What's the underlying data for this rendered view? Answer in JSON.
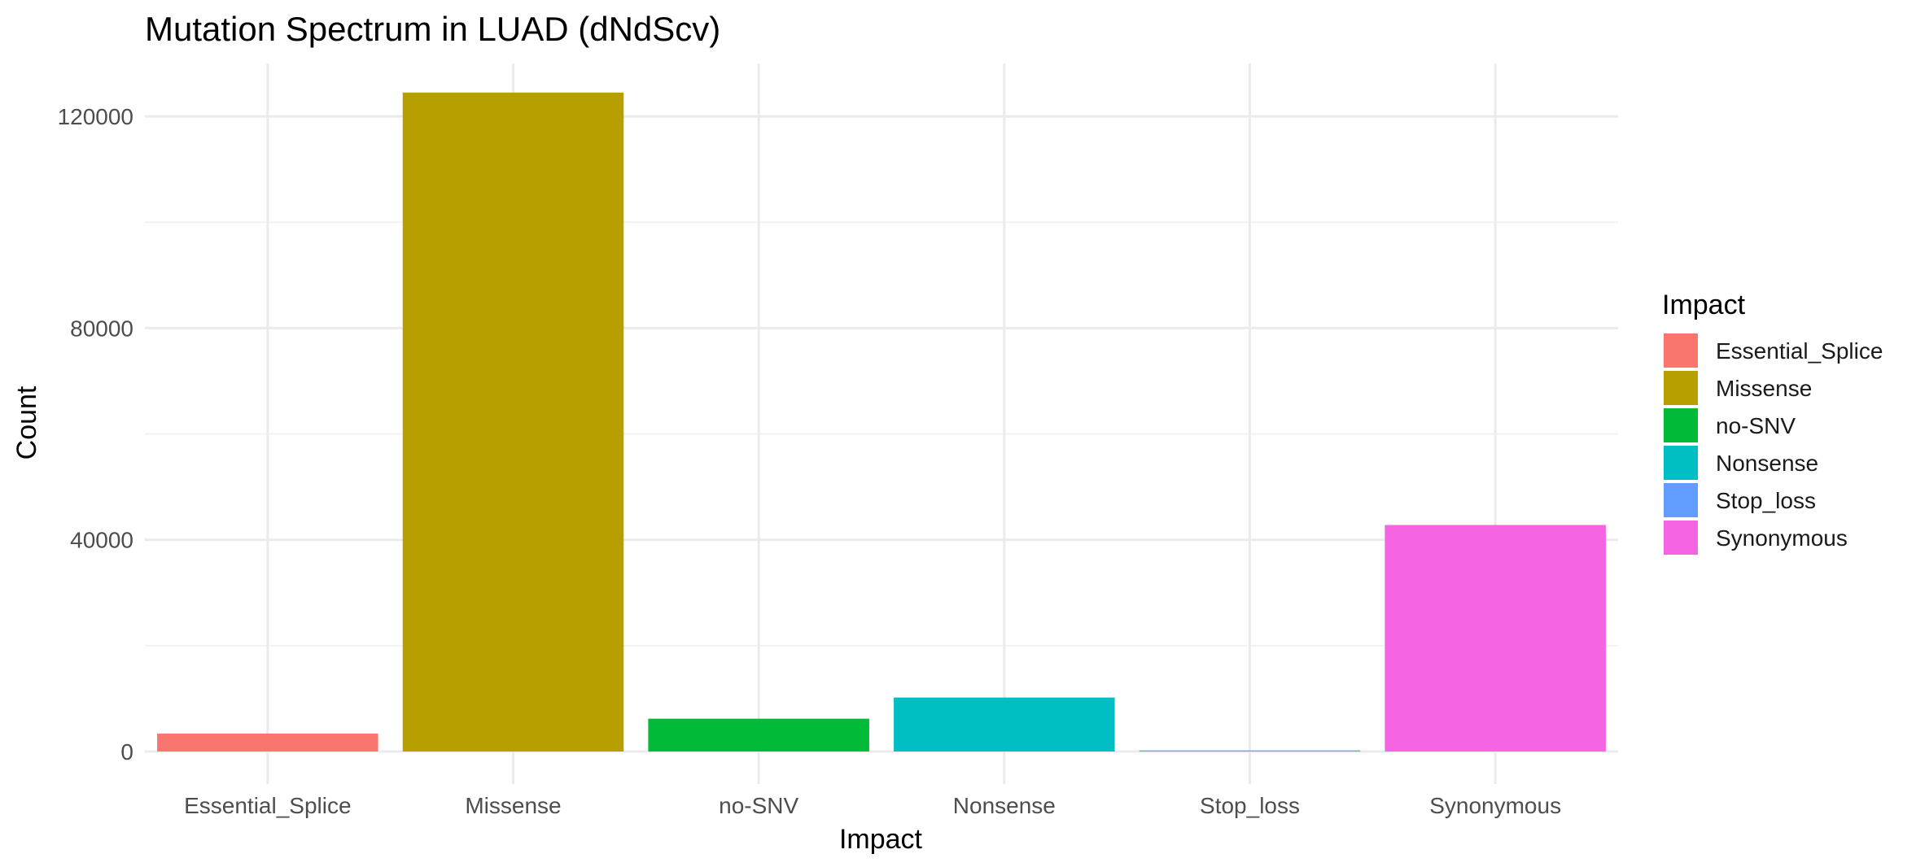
{
  "chart_data": {
    "type": "bar",
    "title": "Mutation Spectrum in LUAD (dNdScv)",
    "xlabel": "Impact",
    "ylabel": "Count",
    "categories": [
      "Essential_Splice",
      "Missense",
      "no-SNV",
      "Nonsense",
      "Stop_loss",
      "Synonymous"
    ],
    "values": [
      3400,
      124500,
      6200,
      10200,
      200,
      42800
    ],
    "colors": [
      "#F8766D",
      "#B79F00",
      "#00BA38",
      "#00BFC4",
      "#619CFF",
      "#F564E3"
    ],
    "ylim": [
      0,
      130000
    ],
    "yticks": [
      0,
      40000,
      80000,
      120000
    ],
    "ytick_labels": [
      "0",
      "40000",
      "80000",
      "120000"
    ],
    "grid": true,
    "legend": {
      "title": "Impact",
      "placement": "right",
      "entries": [
        "Essential_Splice",
        "Missense",
        "no-SNV",
        "Nonsense",
        "Stop_loss",
        "Synonymous"
      ]
    }
  }
}
